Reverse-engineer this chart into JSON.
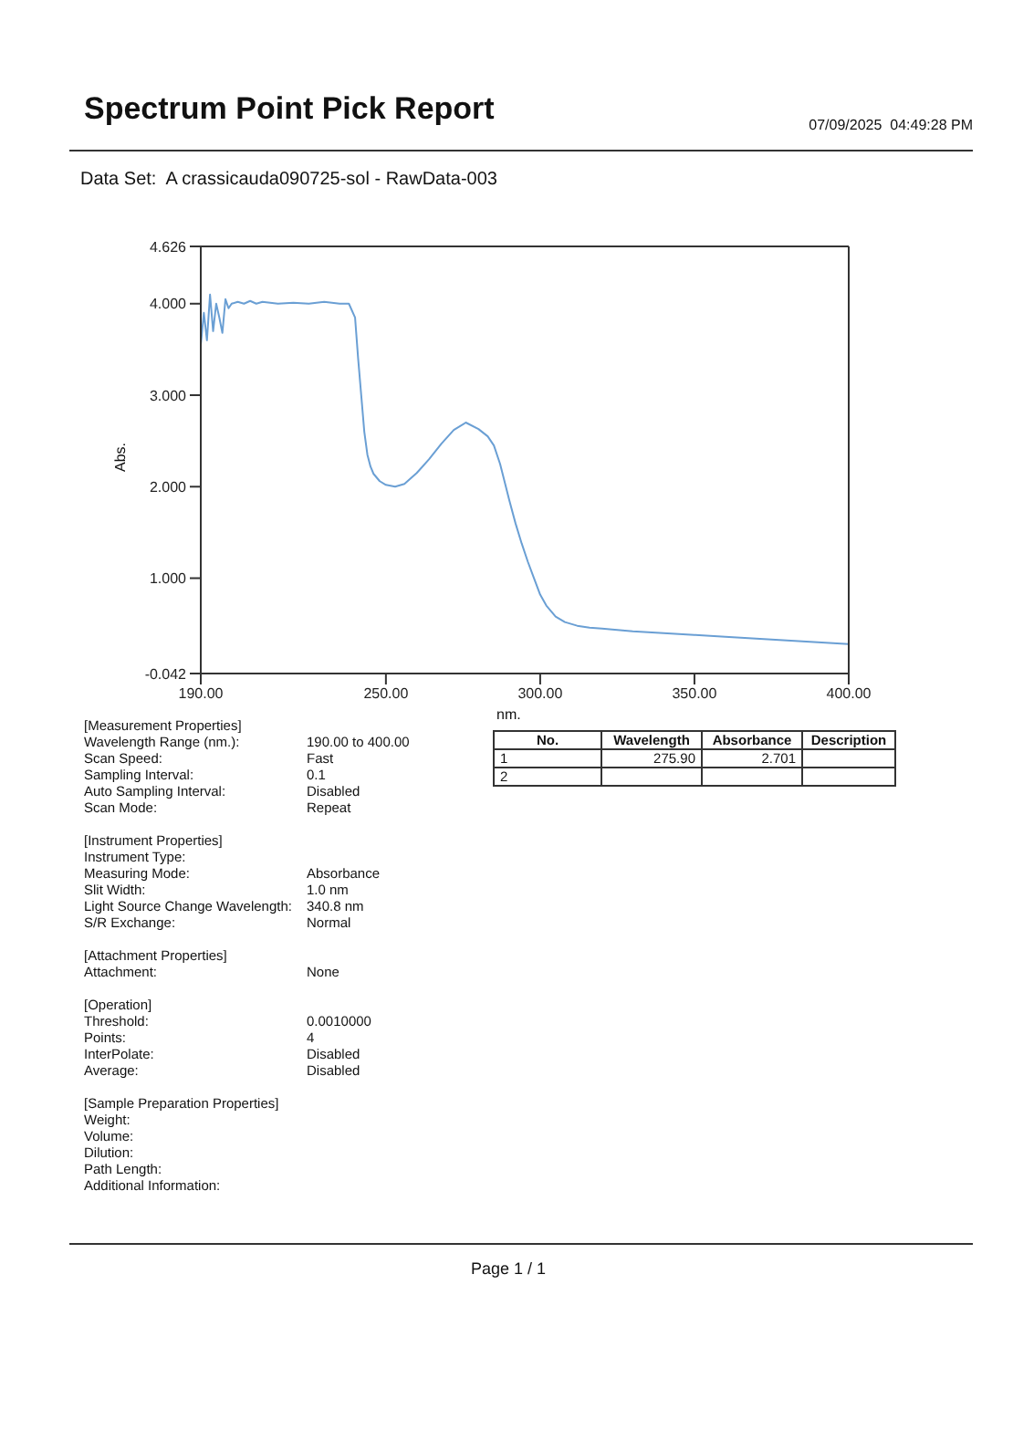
{
  "chart_data": {
    "type": "line",
    "title": "Spectrum Point Pick Report",
    "xlabel": "nm.",
    "ylabel": "Abs.",
    "x": [
      190,
      191,
      192,
      193,
      194,
      195,
      196,
      197,
      198,
      199,
      200,
      202,
      204,
      206,
      208,
      210,
      215,
      220,
      225,
      230,
      235,
      238,
      240,
      241,
      242,
      243,
      244,
      245,
      246,
      248,
      250,
      253,
      256,
      260,
      264,
      268,
      272,
      275.9,
      280,
      283,
      285,
      287,
      290,
      292,
      294,
      296,
      298,
      300,
      302,
      305,
      308,
      312,
      316,
      320,
      330,
      340,
      350,
      360,
      370,
      380,
      390,
      400
    ],
    "series": [
      {
        "color": "#6a9fd4",
        "values": [
          3.55,
          3.9,
          3.6,
          4.1,
          3.7,
          4.0,
          3.85,
          3.68,
          4.05,
          3.95,
          4.0,
          4.02,
          4.0,
          4.03,
          4.0,
          4.02,
          4.0,
          4.01,
          4.0,
          4.02,
          4.0,
          4.0,
          3.85,
          3.4,
          3.0,
          2.6,
          2.35,
          2.22,
          2.14,
          2.06,
          2.02,
          2.0,
          2.03,
          2.15,
          2.3,
          2.47,
          2.62,
          2.701,
          2.63,
          2.55,
          2.45,
          2.25,
          1.85,
          1.6,
          1.38,
          1.18,
          1.0,
          0.82,
          0.7,
          0.58,
          0.52,
          0.48,
          0.46,
          0.45,
          0.42,
          0.4,
          0.38,
          0.36,
          0.34,
          0.32,
          0.3,
          0.28
        ]
      }
    ],
    "xlim": [
      190,
      400
    ],
    "xticks": [
      {
        "value": 190,
        "label": "190.00"
      },
      {
        "value": 250,
        "label": "250.00"
      },
      {
        "value": 300,
        "label": "300.00"
      },
      {
        "value": 350,
        "label": "350.00"
      },
      {
        "value": 400,
        "label": "400.00"
      }
    ],
    "ylim": [
      -0.042,
      4.626
    ],
    "yticks": [
      -0.042,
      {
        "value": 1,
        "label": "1.000"
      },
      {
        "value": 2,
        "label": "2.000"
      },
      {
        "value": 3,
        "label": "3.000"
      },
      {
        "value": 4,
        "label": "4.000"
      },
      4.626
    ],
    "marker": "none",
    "line_style": "solid",
    "annotations": [
      "07/09/2025  04:49:28 PM",
      "Data Set:  A crassicauda090725-sol - RawData-003",
      "No.\tWavelength\tAbsorbance\tDescription",
      "1\t275.90\t2.701\t",
      "2\t\t\t",
      "[Measurement Properties]",
      "Wavelength Range (nm.):\t190.00 to 400.00",
      "Scan Speed:\tFast",
      "Sampling Interval:\t0.1",
      "Auto Sampling Interval:\tDisabled",
      "Scan Mode:\tRepeat",
      "[Instrument Properties]",
      "Instrument Type:\t",
      "Measuring Mode:\tAbsorbance",
      "Slit Width:\t1.0 nm",
      "Light Source Change Wavelength:\t340.8 nm",
      "S/R Exchange:\tNormal",
      "[Attachment Properties]",
      "Attachment:\tNone",
      "[Operation]",
      "Threshold:\t0.0010000",
      "Points:\t4",
      "InterPolate:\tDisabled",
      "Average:\tDisabled",
      "[Sample Preparation Properties]",
      "Weight:\t",
      "Volume:\t",
      "Dilution:\t",
      "Path Length:\t",
      "Additional Information:\t",
      "Page 1 / 1"
    ]
  }
}
